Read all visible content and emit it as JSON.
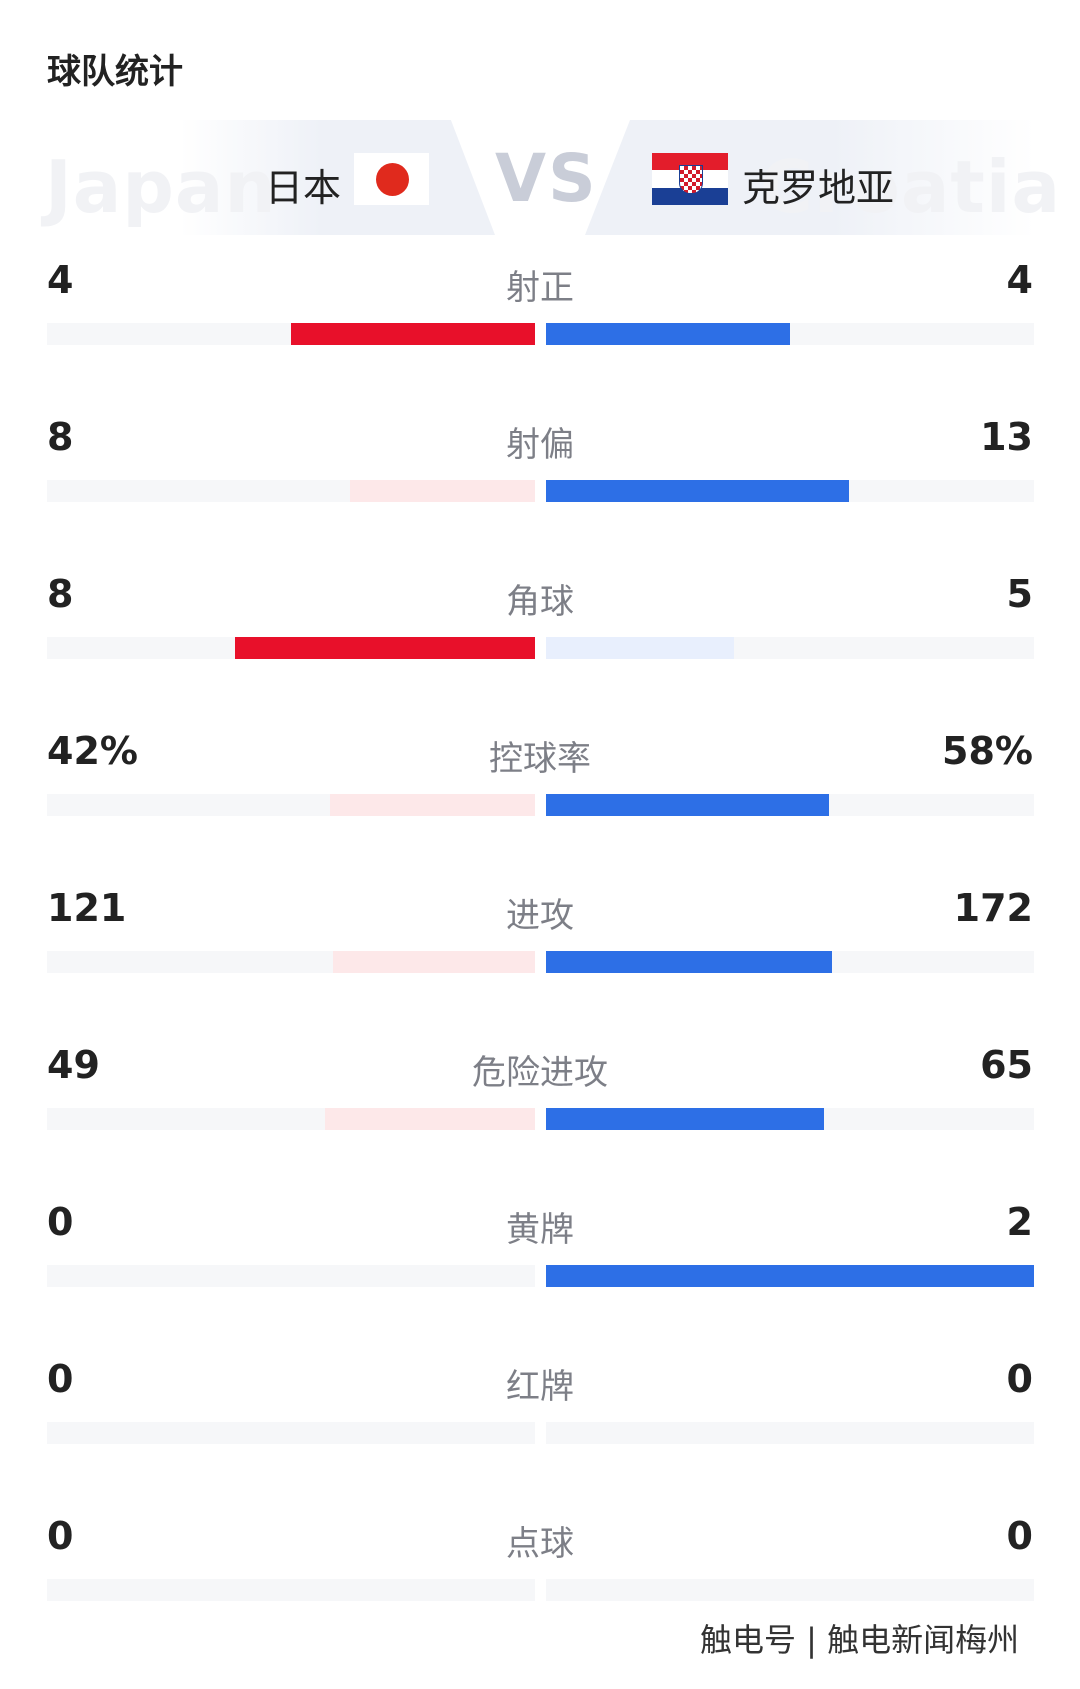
{
  "title": "球队统计",
  "teams": {
    "home": {
      "name": "日本",
      "watermark": "Japan"
    },
    "away": {
      "name": "克罗地亚",
      "watermark": "Croatia"
    },
    "vs": "VS"
  },
  "stats": [
    {
      "label": "射正",
      "home_text": "4",
      "away_text": "4",
      "home_share": 0.5,
      "away_share": 0.5,
      "home_strong": true,
      "away_strong": true
    },
    {
      "label": "射偏",
      "home_text": "8",
      "away_text": "13",
      "home_share": 0.38,
      "away_share": 0.62,
      "home_strong": false,
      "away_strong": true
    },
    {
      "label": "角球",
      "home_text": "8",
      "away_text": "5",
      "home_share": 0.615,
      "away_share": 0.385,
      "home_strong": true,
      "away_strong": false
    },
    {
      "label": "控球率",
      "home_text": "42%",
      "away_text": "58%",
      "home_share": 0.42,
      "away_share": 0.58,
      "home_strong": false,
      "away_strong": true
    },
    {
      "label": "进攻",
      "home_text": "121",
      "away_text": "172",
      "home_share": 0.413,
      "away_share": 0.587,
      "home_strong": false,
      "away_strong": true
    },
    {
      "label": "危险进攻",
      "home_text": "49",
      "away_text": "65",
      "home_share": 0.43,
      "away_share": 0.57,
      "home_strong": false,
      "away_strong": true
    },
    {
      "label": "黄牌",
      "home_text": "0",
      "away_text": "2",
      "home_share": 0,
      "away_share": 1,
      "home_strong": false,
      "away_strong": true
    },
    {
      "label": "红牌",
      "home_text": "0",
      "away_text": "0",
      "home_share": 0,
      "away_share": 0,
      "home_strong": false,
      "away_strong": false
    },
    {
      "label": "点球",
      "home_text": "0",
      "away_text": "0",
      "home_share": 0,
      "away_share": 0,
      "home_strong": false,
      "away_strong": false
    }
  ],
  "colors": {
    "home_strong": "#e8102a",
    "home_weak": "#fde8e9",
    "away_strong": "#2d6fe6",
    "away_weak": "#e8effd",
    "track": "#f6f7f9"
  },
  "source_watermark": "触电号 | 触电新闻梅州"
}
